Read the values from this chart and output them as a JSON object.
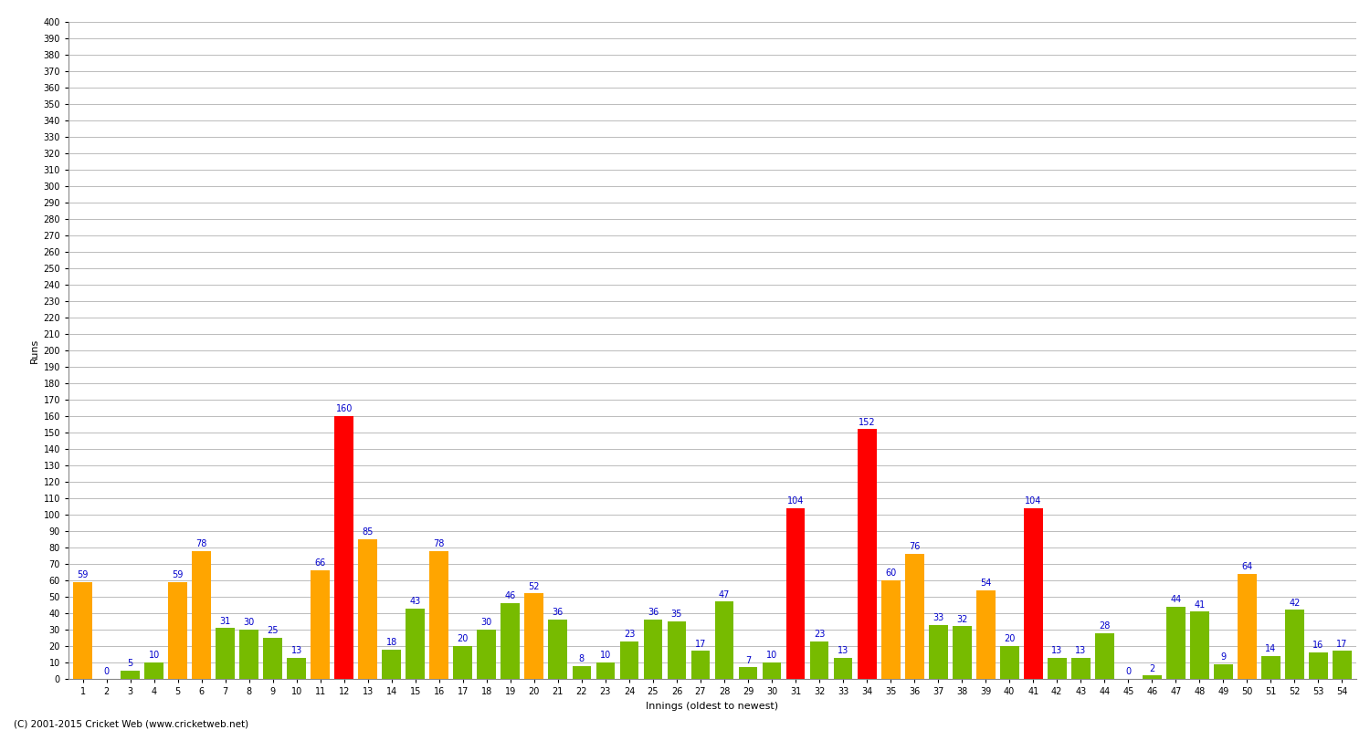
{
  "innings_data": [
    [
      1,
      59,
      "orange"
    ],
    [
      2,
      0,
      "green"
    ],
    [
      3,
      5,
      "green"
    ],
    [
      4,
      10,
      "green"
    ],
    [
      5,
      59,
      "orange"
    ],
    [
      6,
      78,
      "orange"
    ],
    [
      7,
      31,
      "green"
    ],
    [
      8,
      30,
      "green"
    ],
    [
      9,
      25,
      "green"
    ],
    [
      10,
      13,
      "green"
    ],
    [
      11,
      66,
      "orange"
    ],
    [
      12,
      160,
      "red"
    ],
    [
      13,
      85,
      "orange"
    ],
    [
      14,
      18,
      "green"
    ],
    [
      15,
      43,
      "green"
    ],
    [
      16,
      78,
      "orange"
    ],
    [
      17,
      20,
      "green"
    ],
    [
      18,
      30,
      "green"
    ],
    [
      19,
      46,
      "green"
    ],
    [
      20,
      52,
      "orange"
    ],
    [
      21,
      36,
      "green"
    ],
    [
      22,
      8,
      "green"
    ],
    [
      23,
      10,
      "green"
    ],
    [
      24,
      23,
      "green"
    ],
    [
      25,
      36,
      "green"
    ],
    [
      26,
      35,
      "green"
    ],
    [
      27,
      17,
      "green"
    ],
    [
      28,
      47,
      "green"
    ],
    [
      29,
      7,
      "green"
    ],
    [
      30,
      10,
      "green"
    ],
    [
      31,
      104,
      "red"
    ],
    [
      32,
      23,
      "green"
    ],
    [
      33,
      13,
      "green"
    ],
    [
      34,
      152,
      "red"
    ],
    [
      35,
      60,
      "orange"
    ],
    [
      36,
      76,
      "orange"
    ],
    [
      37,
      33,
      "green"
    ],
    [
      38,
      32,
      "green"
    ],
    [
      39,
      54,
      "orange"
    ],
    [
      40,
      20,
      "green"
    ],
    [
      41,
      104,
      "red"
    ],
    [
      42,
      13,
      "green"
    ],
    [
      43,
      13,
      "green"
    ],
    [
      44,
      28,
      "green"
    ],
    [
      45,
      0,
      "green"
    ],
    [
      46,
      2,
      "green"
    ],
    [
      47,
      44,
      "green"
    ],
    [
      48,
      41,
      "green"
    ],
    [
      49,
      9,
      "green"
    ],
    [
      50,
      64,
      "orange"
    ],
    [
      51,
      14,
      "green"
    ],
    [
      52,
      42,
      "green"
    ],
    [
      53,
      16,
      "green"
    ],
    [
      54,
      17,
      "green"
    ]
  ],
  "xtick_labels": [
    "1",
    "2",
    "3",
    "4",
    "5",
    "6",
    "7",
    "8",
    "9",
    "10",
    "11",
    "12",
    "13",
    "14",
    "15",
    "16",
    "17",
    "18",
    "19",
    "20",
    "21",
    "22",
    "23",
    "24",
    "25",
    "26",
    "27",
    "28",
    "29",
    "30",
    "31",
    "32",
    "33",
    "34",
    "35",
    "36",
    "37",
    "38",
    "39",
    "40",
    "41",
    "42",
    "43",
    "44",
    "45",
    "46",
    "47",
    "48",
    "49",
    "50",
    "51",
    "52",
    "53",
    "54"
  ],
  "xlabel": "Innings (oldest to newest)",
  "ylabel": "Runs",
  "ylim": [
    0,
    400
  ],
  "yticks": [
    0,
    10,
    20,
    30,
    40,
    50,
    60,
    70,
    80,
    90,
    100,
    110,
    120,
    130,
    140,
    150,
    160,
    170,
    180,
    190,
    200,
    210,
    220,
    230,
    240,
    250,
    260,
    270,
    280,
    290,
    300,
    310,
    320,
    330,
    340,
    350,
    360,
    370,
    380,
    390,
    400
  ],
  "footer": "(C) 2001-2015 Cricket Web (www.cricketweb.net)",
  "color_orange": "#FFA500",
  "color_green": "#77BB00",
  "color_red": "#FF0000",
  "bg_color": "#FFFFFF",
  "grid_color": "#BBBBBB",
  "label_color": "#0000CC",
  "bar_width": 0.8,
  "value_fontsize": 7,
  "tick_fontsize": 7,
  "axis_label_fontsize": 8,
  "title_fontsize": 10
}
